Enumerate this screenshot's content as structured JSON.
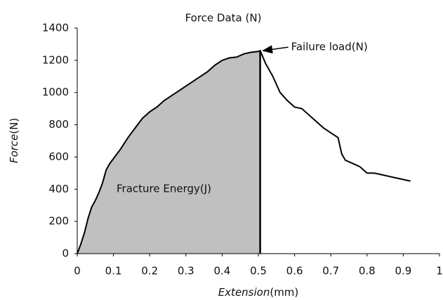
{
  "chart_data": {
    "type": "line",
    "title": "Force Data (N)",
    "xlabel": [
      "Extension",
      "(mm)"
    ],
    "ylabel": [
      "Force",
      "(N)"
    ],
    "x": [
      0,
      0.01,
      0.02,
      0.03,
      0.04,
      0.05,
      0.06,
      0.07,
      0.08,
      0.09,
      0.1,
      0.12,
      0.14,
      0.16,
      0.18,
      0.2,
      0.22,
      0.24,
      0.26,
      0.28,
      0.3,
      0.32,
      0.34,
      0.36,
      0.38,
      0.4,
      0.42,
      0.44,
      0.46,
      0.48,
      0.5,
      0.505,
      0.52,
      0.54,
      0.56,
      0.58,
      0.6,
      0.62,
      0.64,
      0.66,
      0.68,
      0.7,
      0.72,
      0.73,
      0.74,
      0.76,
      0.78,
      0.8,
      0.82,
      0.84,
      0.86,
      0.88,
      0.9,
      0.92
    ],
    "series": [
      {
        "name": "Force",
        "color": "#000000",
        "values": [
          0,
          60,
          130,
          220,
          290,
          330,
          380,
          440,
          520,
          560,
          590,
          650,
          720,
          780,
          840,
          880,
          910,
          950,
          980,
          1010,
          1040,
          1070,
          1100,
          1130,
          1170,
          1200,
          1215,
          1220,
          1240,
          1250,
          1255,
          1260,
          1180,
          1100,
          1000,
          950,
          910,
          900,
          860,
          820,
          780,
          750,
          720,
          620,
          580,
          560,
          540,
          500,
          500,
          490,
          480,
          470,
          460,
          450
        ]
      }
    ],
    "fill_color": "#c0c0c0",
    "xlim": [
      0,
      1
    ],
    "xticks": [
      0,
      0.1,
      0.2,
      0.3,
      0.4,
      0.5,
      0.6,
      0.7,
      0.8,
      0.9,
      1
    ],
    "ylim": [
      0,
      1400
    ],
    "yticks": [
      0,
      200,
      400,
      600,
      800,
      1000,
      1200,
      1400
    ],
    "grid": false,
    "annotations": [
      {
        "text": "Failure load(N)",
        "x": 0.505,
        "y": 1260
      },
      {
        "text": "Fracture Energy(J)"
      }
    ]
  }
}
